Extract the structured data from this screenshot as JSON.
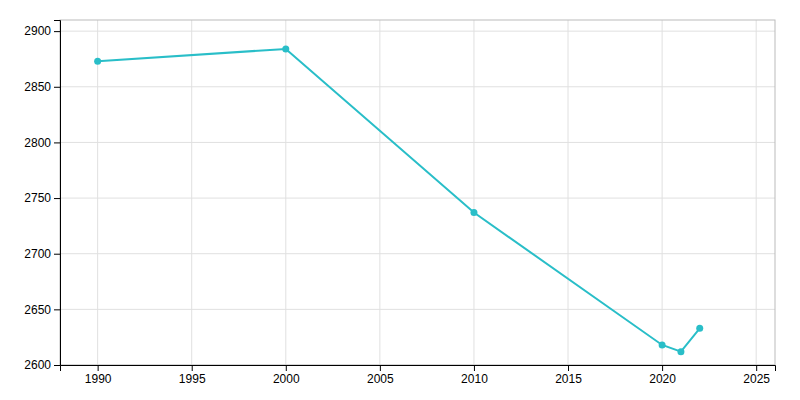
{
  "chart_data": {
    "type": "line",
    "x": [
      1990,
      2000,
      2010,
      2020,
      2021,
      2022
    ],
    "values": [
      2873,
      2884,
      2737,
      2618,
      2612,
      2633
    ],
    "color": "#29BEC8",
    "marker": "circle",
    "xlim": [
      1988,
      2026
    ],
    "ylim": [
      2600,
      2910
    ],
    "xticks": [
      1990,
      1995,
      2000,
      2005,
      2010,
      2015,
      2020,
      2025
    ],
    "yticks": [
      2600,
      2650,
      2700,
      2750,
      2800,
      2850,
      2900
    ],
    "grid": true
  }
}
